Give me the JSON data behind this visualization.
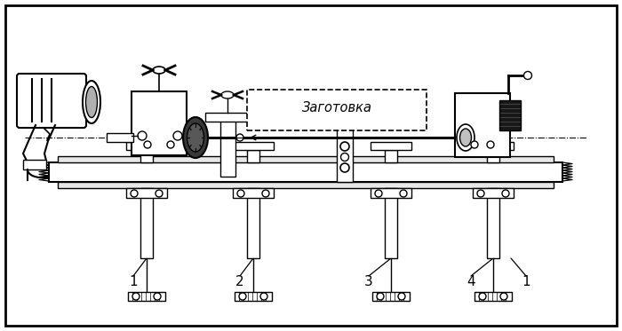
{
  "title": "",
  "bg_color": "#ffffff",
  "border_color": "#000000",
  "line_color": "#000000",
  "label_zagotovka": "Заготовка",
  "figsize": [
    7.0,
    3.73
  ],
  "dpi": 100
}
